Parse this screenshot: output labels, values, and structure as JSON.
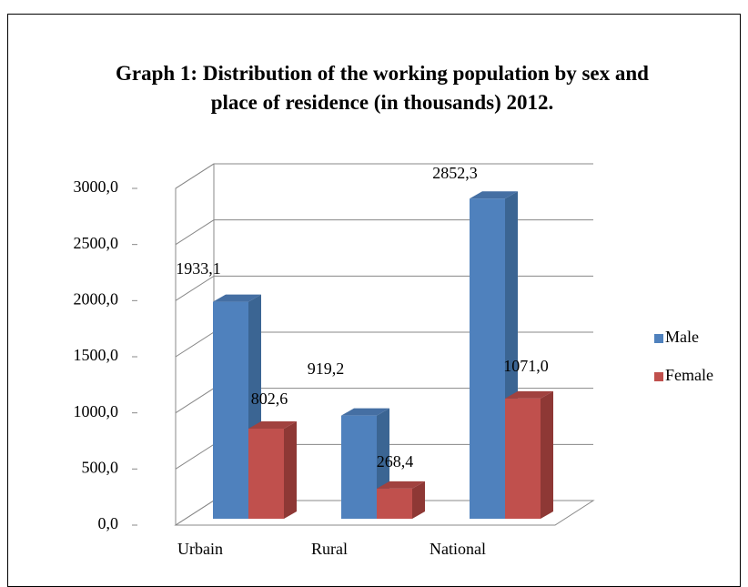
{
  "chart_data": {
    "type": "bar3d",
    "title": "Graph 1: Distribution of the working population by sex and place of residence (in thousands) 2012.",
    "categories": [
      "Urbain",
      "Rural",
      "National"
    ],
    "series": [
      {
        "name": "Male",
        "color": "#4f81bd",
        "values": [
          1933.1,
          919.2,
          2852.3
        ],
        "value_labels": [
          "1933,1",
          "919,2",
          "2852,3"
        ]
      },
      {
        "name": "Female",
        "color": "#c0504d",
        "values": [
          802.6,
          268.4,
          1071.0
        ],
        "value_labels": [
          "802,6",
          "268,4",
          "1071,0"
        ]
      }
    ],
    "ylim": [
      0,
      3000
    ],
    "yticks": [
      {
        "value": 0,
        "label": "0,0"
      },
      {
        "value": 500,
        "label": "500,0"
      },
      {
        "value": 1000,
        "label": "1000,0"
      },
      {
        "value": 1500,
        "label": "1500,0"
      },
      {
        "value": 2000,
        "label": "2000,0"
      },
      {
        "value": 2500,
        "label": "2500,0"
      },
      {
        "value": 3000,
        "label": "3000,0"
      }
    ],
    "grid": true,
    "legend": "right"
  }
}
